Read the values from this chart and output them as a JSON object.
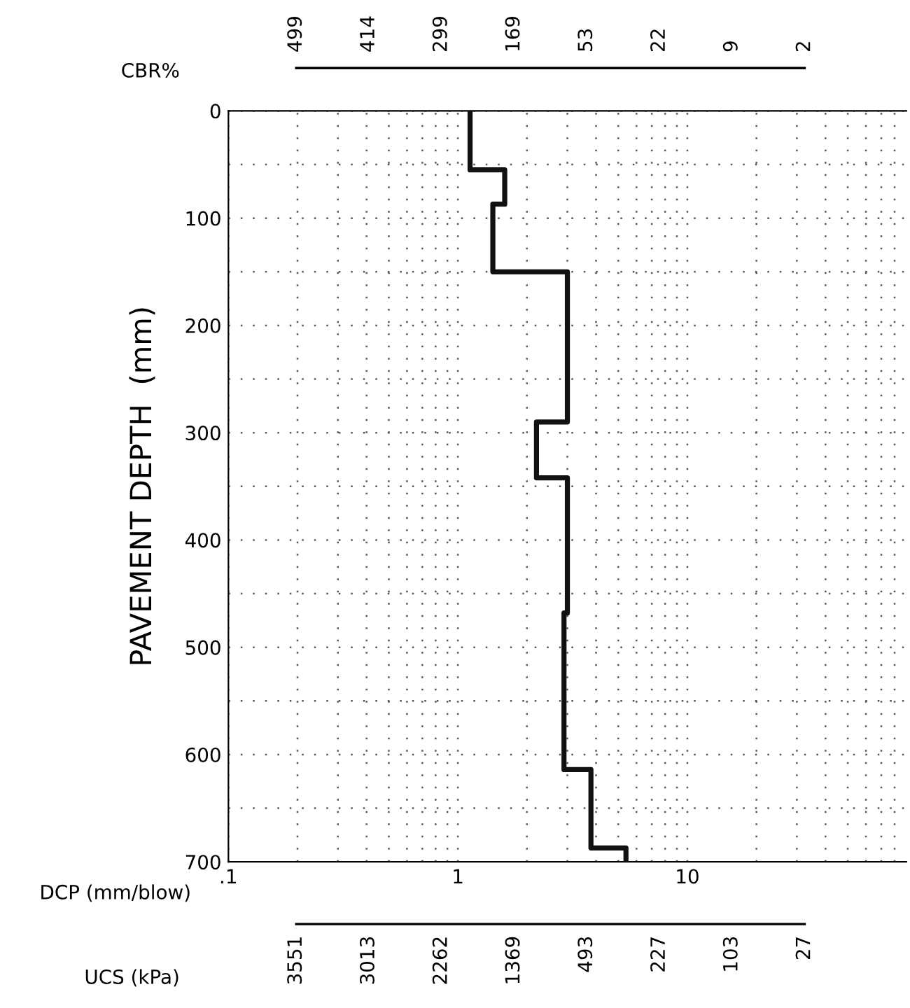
{
  "chart_data": {
    "type": "line",
    "xlabel": "DCP (mm/blow)",
    "ylabel": "PAVEMENT DEPTH  (mm)",
    "log": "x",
    "xlim": [
      0.1,
      90
    ],
    "xticks": [
      {
        "value": 0.1,
        "label": ".1"
      },
      {
        "value": 0.2,
        "label": null
      },
      {
        "value": 0.3,
        "label": null
      },
      {
        "value": 0.4,
        "label": null
      },
      {
        "value": 0.5,
        "label": null
      },
      {
        "value": 0.6,
        "label": null
      },
      {
        "value": 0.7,
        "label": null
      },
      {
        "value": 0.8,
        "label": null
      },
      {
        "value": 0.9,
        "label": null
      },
      1,
      {
        "value": 2,
        "label": null
      },
      {
        "value": 3,
        "label": null
      },
      {
        "value": 4,
        "label": null
      },
      {
        "value": 5,
        "label": null
      },
      {
        "value": 6,
        "label": null
      },
      {
        "value": 7,
        "label": null
      },
      {
        "value": 8,
        "label": null
      },
      {
        "value": 9,
        "label": null
      },
      10,
      {
        "value": 20,
        "label": null
      },
      {
        "value": 30,
        "label": null
      },
      {
        "value": 40,
        "label": null
      },
      {
        "value": 50,
        "label": null
      },
      {
        "value": 60,
        "label": null
      },
      {
        "value": 70,
        "label": null
      },
      {
        "value": 80,
        "label": null
      }
    ],
    "ylim": [
      700,
      0
    ],
    "yticks": [
      0,
      {
        "value": 50,
        "label": null
      },
      100,
      {
        "value": 150,
        "label": null
      },
      200,
      {
        "value": 250,
        "label": null
      },
      300,
      {
        "value": 350,
        "label": null
      },
      400,
      {
        "value": 450,
        "label": null
      },
      500,
      {
        "value": 550,
        "label": null
      },
      600,
      {
        "value": 650,
        "label": null
      },
      700
    ],
    "grid": true,
    "line_style": "solid",
    "marker": "none",
    "annotations": [
      "CBR%",
      "499",
      "414",
      "299",
      "169",
      "53",
      "22",
      "9",
      "2",
      "UCS (kPa)",
      "3551",
      "3013",
      "2262",
      "1369",
      "493",
      "227",
      "103",
      "27"
    ],
    "series": [
      {
        "color": "#111111",
        "x": [
          1.13,
          1.13,
          1.6,
          1.6,
          1.42,
          1.42,
          3.0,
          3.0,
          2.2,
          2.2,
          3.0,
          3.0,
          2.9,
          2.9,
          3.8,
          3.8,
          5.4,
          5.4
        ],
        "values": [
          0,
          55,
          55,
          87,
          87,
          150,
          150,
          290,
          290,
          342,
          342,
          468,
          468,
          614,
          614,
          687,
          687,
          700
        ]
      }
    ]
  }
}
